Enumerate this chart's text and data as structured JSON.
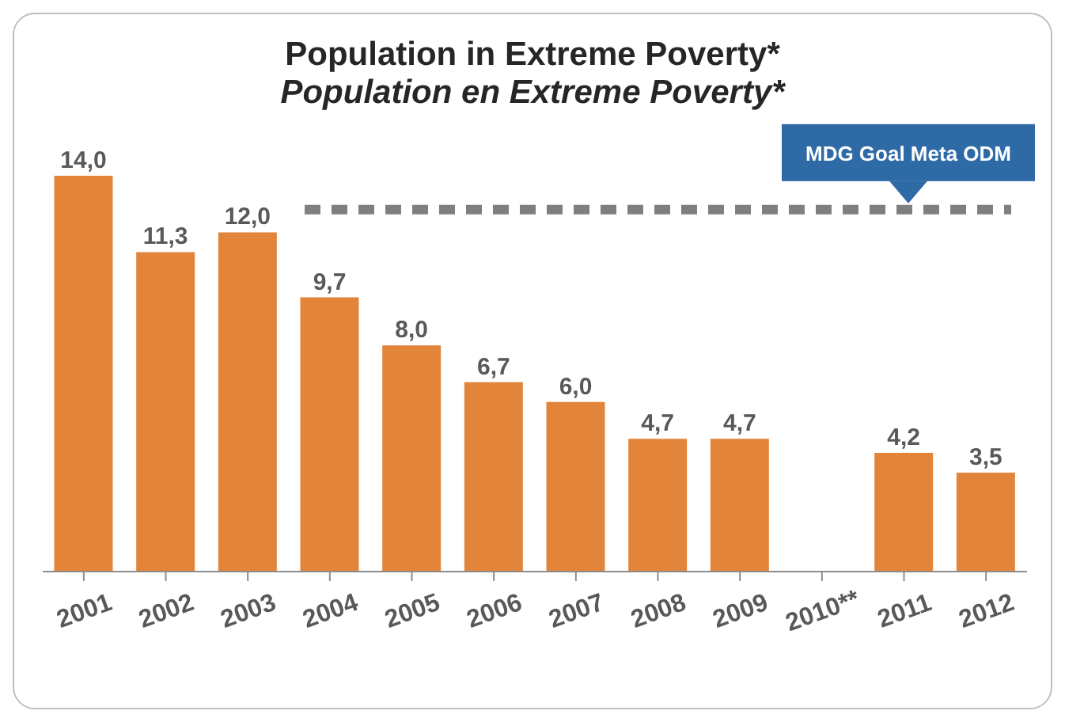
{
  "chart_data": {
    "type": "bar",
    "title": "Population in Extreme Poverty*",
    "subtitle": "Population en Extreme Poverty*",
    "categories": [
      "2001",
      "2002",
      "2003",
      "2004",
      "2005",
      "2006",
      "2007",
      "2008",
      "2009",
      "2010**",
      "2011",
      "2012"
    ],
    "values": [
      14.0,
      11.3,
      12.0,
      9.7,
      8.0,
      6.7,
      6.0,
      4.7,
      4.7,
      null,
      4.2,
      3.5
    ],
    "value_labels": [
      "14,0",
      "11,3",
      "12,0",
      "9,7",
      "8,0",
      "6,7",
      "6,0",
      "4,7",
      "4,7",
      null,
      "4,2",
      "3,5"
    ],
    "color": "#e2853a",
    "ref_lines": [
      {
        "axis": "y",
        "value": 12.8,
        "label": "MDG Goal Meta ODM",
        "color": "#7f7f7f",
        "line_style": "dashed"
      }
    ],
    "grid": false
  }
}
